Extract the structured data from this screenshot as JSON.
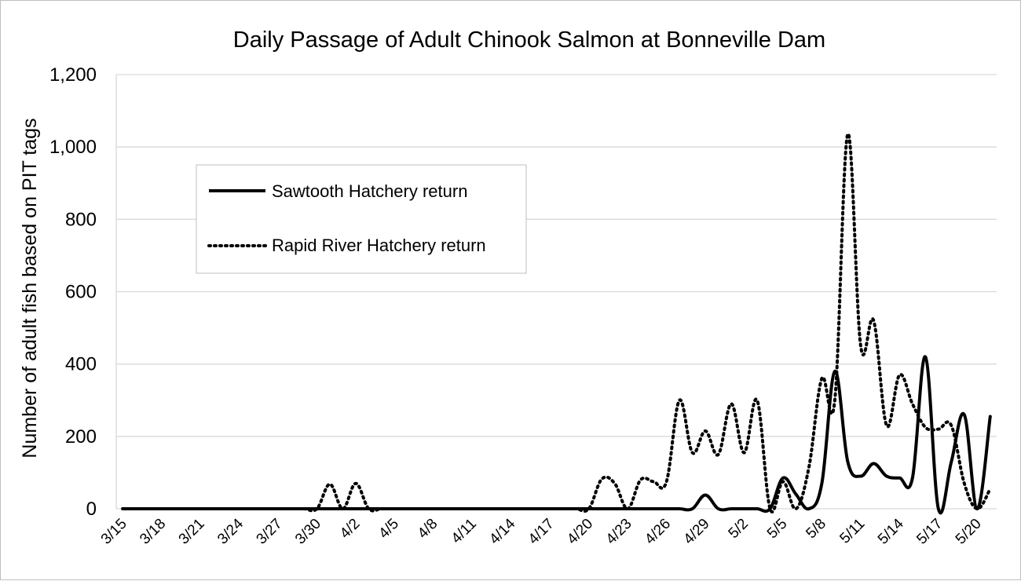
{
  "chart_data": {
    "type": "line",
    "title": "Daily Passage of Adult Chinook Salmon at Bonneville Dam",
    "xlabel": "",
    "ylabel": "Number of adult fish based on PIT tags",
    "ylim": [
      0,
      1200
    ],
    "yticks": [
      "0",
      "200",
      "400",
      "600",
      "800",
      "1,000",
      "1,200"
    ],
    "grid": "horizontal",
    "legend_position": "upper-left",
    "x": [
      "3/15",
      "3/16",
      "3/17",
      "3/18",
      "3/19",
      "3/20",
      "3/21",
      "3/22",
      "3/23",
      "3/24",
      "3/25",
      "3/26",
      "3/27",
      "3/28",
      "3/29",
      "3/30",
      "3/31",
      "4/1",
      "4/2",
      "4/3",
      "4/4",
      "4/5",
      "4/6",
      "4/7",
      "4/8",
      "4/9",
      "4/10",
      "4/11",
      "4/12",
      "4/13",
      "4/14",
      "4/15",
      "4/16",
      "4/17",
      "4/18",
      "4/19",
      "4/20",
      "4/21",
      "4/22",
      "4/23",
      "4/24",
      "4/25",
      "4/26",
      "4/27",
      "4/28",
      "4/29",
      "4/30",
      "5/1",
      "5/2",
      "5/3",
      "5/4",
      "5/5",
      "5/6",
      "5/7",
      "5/8",
      "5/9",
      "5/10",
      "5/11",
      "5/12",
      "5/13",
      "5/14",
      "5/15",
      "5/16",
      "5/17",
      "5/18",
      "5/19",
      "5/20",
      "5/21"
    ],
    "xtick_labels": [
      "3/15",
      "3/18",
      "3/21",
      "3/24",
      "3/27",
      "3/30",
      "4/2",
      "4/5",
      "4/8",
      "4/11",
      "4/14",
      "4/17",
      "4/20",
      "4/23",
      "4/26",
      "4/29",
      "5/2",
      "5/5",
      "5/8",
      "5/11",
      "5/14",
      "5/17",
      "5/20"
    ],
    "series": [
      {
        "name": "Sawtooth Hatchery return",
        "style": "solid",
        "color": "#000000",
        "values": [
          0,
          0,
          0,
          0,
          0,
          0,
          0,
          0,
          0,
          0,
          0,
          0,
          0,
          0,
          0,
          0,
          0,
          0,
          0,
          0,
          0,
          0,
          0,
          0,
          0,
          0,
          0,
          0,
          0,
          0,
          0,
          0,
          0,
          0,
          0,
          0,
          0,
          0,
          0,
          0,
          0,
          0,
          0,
          0,
          0,
          38,
          0,
          0,
          0,
          0,
          0,
          85,
          40,
          0,
          70,
          380,
          130,
          90,
          125,
          90,
          85,
          85,
          420,
          0,
          130,
          260,
          0,
          255
        ]
      },
      {
        "name": "Rapid River Hatchery return",
        "style": "dotted",
        "color": "#000000",
        "values": [
          0,
          0,
          0,
          0,
          0,
          0,
          0,
          0,
          0,
          0,
          0,
          0,
          0,
          0,
          0,
          0,
          68,
          0,
          70,
          0,
          0,
          0,
          0,
          0,
          0,
          0,
          0,
          0,
          0,
          0,
          0,
          0,
          0,
          0,
          0,
          0,
          0,
          82,
          70,
          0,
          80,
          75,
          75,
          300,
          155,
          215,
          150,
          290,
          155,
          300,
          0,
          75,
          0,
          115,
          360,
          300,
          1035,
          450,
          520,
          230,
          370,
          290,
          225,
          220,
          230,
          70,
          0,
          55
        ]
      }
    ]
  }
}
